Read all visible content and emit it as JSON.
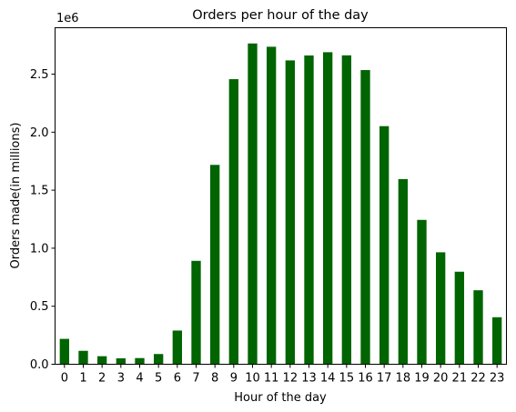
{
  "chart_data": {
    "type": "bar",
    "title": "Orders per hour of the day",
    "xlabel": "Hour of the day",
    "ylabel": "Orders made(in millions)",
    "offset_label": "1e6",
    "categories": [
      "0",
      "1",
      "2",
      "3",
      "4",
      "5",
      "6",
      "7",
      "8",
      "9",
      "10",
      "11",
      "12",
      "13",
      "14",
      "15",
      "16",
      "17",
      "18",
      "19",
      "20",
      "21",
      "22",
      "23"
    ],
    "values": [
      218769,
      115700,
      69375,
      51281,
      53242,
      88062,
      290493,
      891054,
      1718168,
      2456713,
      2764476,
      2736140,
      2618532,
      2660954,
      2689136,
      2662144,
      2535202,
      2051956,
      1595675,
      1243983,
      964733,
      797400,
      637553,
      405100
    ],
    "ylim": [
      0,
      2900000
    ],
    "yticks": [
      0.0,
      0.5,
      1.0,
      1.5,
      2.0,
      2.5
    ],
    "ytick_labels": [
      "0.0",
      "0.5",
      "1.0",
      "1.5",
      "2.0",
      "2.5"
    ],
    "bar_color": "#006400",
    "grid": false,
    "legend": "none"
  }
}
